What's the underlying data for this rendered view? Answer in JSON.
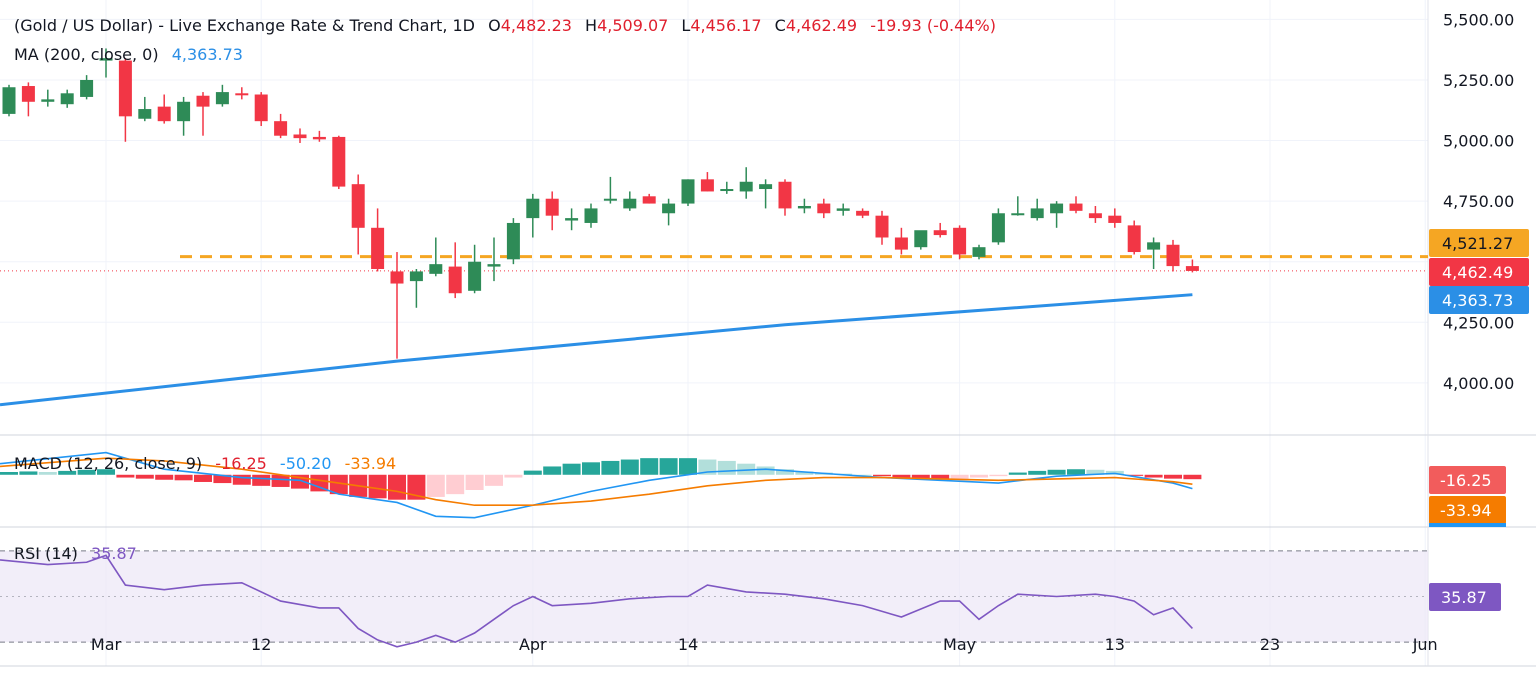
{
  "header": {
    "title": "(Gold / US Dollar) - Live Exchange Rate & Trend Chart, 1D",
    "o_label": "O",
    "o_value": "4,482.23",
    "h_label": "H",
    "h_value": "4,509.07",
    "l_label": "L",
    "l_value": "4,456.17",
    "c_label": "C",
    "c_value": "4,462.49",
    "change": "-19.93 (-0.44%)",
    "ma_label": "MA (200, close, 0)",
    "ma_value": "4,363.73"
  },
  "macd_header": {
    "label": "MACD (12, 26, close, 9)",
    "hist": "-16.25",
    "macd": "-50.20",
    "signal": "-33.94"
  },
  "rsi_header": {
    "label": "RSI (14)",
    "value": "35.87"
  },
  "price_tags": {
    "support": "4,521.27",
    "last": "4,462.49",
    "ma": "4,363.73",
    "macd_hist": "-16.25",
    "macd_signal": "-33.94",
    "rsi": "35.87"
  },
  "colors": {
    "up": "#26a69a",
    "up_body": "#2e8b57",
    "down": "#f23645",
    "ma": "#2b8fe6",
    "support": "#f5a623",
    "macd": "#2196f3",
    "signal": "#f57c00",
    "rsi": "#7e57c2"
  },
  "chart_data": [
    {
      "type": "candlestick",
      "title": "(Gold / US Dollar) - Live Exchange Rate & Trend Chart, 1D",
      "y_ticks": [
        "5,500.00",
        "5,250.00",
        "5,000.00",
        "4,750.00",
        "4,250.00",
        "4,000.00"
      ],
      "y_tick_values": [
        5500,
        5250,
        5000,
        4750,
        4250,
        4000
      ],
      "ylim": [
        3785,
        5580
      ],
      "x_ticks": [
        "Mar",
        "12",
        "Apr",
        "14",
        "May",
        "13",
        "23",
        "Jun"
      ],
      "x_tick_index": [
        5,
        13,
        27,
        35,
        49,
        57,
        65,
        73
      ],
      "support_level": 4521.27,
      "last_price": 4462.49,
      "candles": [
        {
          "o": 5110,
          "h": 5230,
          "l": 5100,
          "c": 5220
        },
        {
          "o": 5225,
          "h": 5240,
          "l": 5100,
          "c": 5160
        },
        {
          "o": 5160,
          "h": 5210,
          "l": 5140,
          "c": 5170
        },
        {
          "o": 5150,
          "h": 5210,
          "l": 5135,
          "c": 5195
        },
        {
          "o": 5180,
          "h": 5270,
          "l": 5170,
          "c": 5250
        },
        {
          "o": 5330,
          "h": 5380,
          "l": 5260,
          "c": 5340
        },
        {
          "o": 5330,
          "h": 5340,
          "l": 4995,
          "c": 5100
        },
        {
          "o": 5090,
          "h": 5180,
          "l": 5080,
          "c": 5130
        },
        {
          "o": 5140,
          "h": 5190,
          "l": 5070,
          "c": 5080
        },
        {
          "o": 5080,
          "h": 5180,
          "l": 5020,
          "c": 5160
        },
        {
          "o": 5185,
          "h": 5200,
          "l": 5020,
          "c": 5140
        },
        {
          "o": 5150,
          "h": 5230,
          "l": 5140,
          "c": 5200
        },
        {
          "o": 5195,
          "h": 5220,
          "l": 5170,
          "c": 5190
        },
        {
          "o": 5190,
          "h": 5200,
          "l": 5060,
          "c": 5080
        },
        {
          "o": 5080,
          "h": 5110,
          "l": 5010,
          "c": 5020
        },
        {
          "o": 5025,
          "h": 5050,
          "l": 4990,
          "c": 5010
        },
        {
          "o": 5015,
          "h": 5040,
          "l": 4995,
          "c": 5005
        },
        {
          "o": 5015,
          "h": 5020,
          "l": 4800,
          "c": 4810
        },
        {
          "o": 4820,
          "h": 4860,
          "l": 4530,
          "c": 4640
        },
        {
          "o": 4640,
          "h": 4720,
          "l": 4460,
          "c": 4470
        },
        {
          "o": 4460,
          "h": 4540,
          "l": 4100,
          "c": 4410
        },
        {
          "o": 4420,
          "h": 4470,
          "l": 4310,
          "c": 4460
        },
        {
          "o": 4450,
          "h": 4600,
          "l": 4440,
          "c": 4490
        },
        {
          "o": 4480,
          "h": 4580,
          "l": 4350,
          "c": 4370
        },
        {
          "o": 4380,
          "h": 4570,
          "l": 4370,
          "c": 4500
        },
        {
          "o": 4480,
          "h": 4600,
          "l": 4420,
          "c": 4490
        },
        {
          "o": 4510,
          "h": 4680,
          "l": 4490,
          "c": 4660
        },
        {
          "o": 4680,
          "h": 4780,
          "l": 4600,
          "c": 4760
        },
        {
          "o": 4760,
          "h": 4790,
          "l": 4630,
          "c": 4690
        },
        {
          "o": 4670,
          "h": 4720,
          "l": 4630,
          "c": 4680
        },
        {
          "o": 4660,
          "h": 4740,
          "l": 4640,
          "c": 4720
        },
        {
          "o": 4760,
          "h": 4850,
          "l": 4740,
          "c": 4760
        },
        {
          "o": 4720,
          "h": 4790,
          "l": 4710,
          "c": 4760
        },
        {
          "o": 4770,
          "h": 4780,
          "l": 4740,
          "c": 4740
        },
        {
          "o": 4700,
          "h": 4760,
          "l": 4650,
          "c": 4740
        },
        {
          "o": 4740,
          "h": 4840,
          "l": 4730,
          "c": 4840
        },
        {
          "o": 4840,
          "h": 4870,
          "l": 4790,
          "c": 4790
        },
        {
          "o": 4800,
          "h": 4830,
          "l": 4780,
          "c": 4800
        },
        {
          "o": 4790,
          "h": 4890,
          "l": 4760,
          "c": 4830
        },
        {
          "o": 4800,
          "h": 4840,
          "l": 4720,
          "c": 4820
        },
        {
          "o": 4830,
          "h": 4840,
          "l": 4690,
          "c": 4720
        },
        {
          "o": 4720,
          "h": 4760,
          "l": 4700,
          "c": 4730
        },
        {
          "o": 4740,
          "h": 4760,
          "l": 4680,
          "c": 4700
        },
        {
          "o": 4710,
          "h": 4740,
          "l": 4690,
          "c": 4720
        },
        {
          "o": 4710,
          "h": 4720,
          "l": 4680,
          "c": 4690
        },
        {
          "o": 4690,
          "h": 4710,
          "l": 4570,
          "c": 4600
        },
        {
          "o": 4600,
          "h": 4640,
          "l": 4530,
          "c": 4550
        },
        {
          "o": 4560,
          "h": 4620,
          "l": 4550,
          "c": 4630
        },
        {
          "o": 4630,
          "h": 4660,
          "l": 4600,
          "c": 4610
        },
        {
          "o": 4640,
          "h": 4650,
          "l": 4510,
          "c": 4530
        },
        {
          "o": 4520,
          "h": 4570,
          "l": 4510,
          "c": 4560
        },
        {
          "o": 4580,
          "h": 4720,
          "l": 4570,
          "c": 4700
        },
        {
          "o": 4700,
          "h": 4770,
          "l": 4690,
          "c": 4700
        },
        {
          "o": 4680,
          "h": 4760,
          "l": 4670,
          "c": 4720
        },
        {
          "o": 4700,
          "h": 4750,
          "l": 4640,
          "c": 4740
        },
        {
          "o": 4740,
          "h": 4770,
          "l": 4700,
          "c": 4710
        },
        {
          "o": 4700,
          "h": 4730,
          "l": 4660,
          "c": 4680
        },
        {
          "o": 4690,
          "h": 4720,
          "l": 4640,
          "c": 4660
        },
        {
          "o": 4650,
          "h": 4670,
          "l": 4530,
          "c": 4540
        },
        {
          "o": 4550,
          "h": 4600,
          "l": 4470,
          "c": 4580
        },
        {
          "o": 4570,
          "h": 4590,
          "l": 4460,
          "c": 4482
        },
        {
          "o": 4482,
          "h": 4509,
          "l": 4456,
          "c": 4462
        }
      ],
      "ma": {
        "name": "MA (200, close, 0)",
        "x": [
          0,
          20,
          40,
          61
        ],
        "values": [
          3910,
          4090,
          4240,
          4364
        ]
      }
    },
    {
      "type": "line",
      "title": "MACD (12, 26, close, 9)",
      "ylim": [
        -185,
        140
      ],
      "series": [
        {
          "name": "MACD",
          "x": [
            0,
            5,
            8,
            12,
            15,
            17,
            20,
            22,
            24,
            27,
            30,
            33,
            36,
            39,
            42,
            45,
            48,
            51,
            54,
            57,
            60,
            61
          ],
          "values": [
            40,
            80,
            20,
            -10,
            -20,
            -70,
            -100,
            -150,
            -155,
            -110,
            -60,
            -20,
            10,
            20,
            5,
            -10,
            -20,
            -30,
            -5,
            5,
            -30,
            -50
          ]
        },
        {
          "name": "Signal",
          "x": [
            0,
            5,
            8,
            12,
            15,
            17,
            20,
            22,
            24,
            27,
            30,
            33,
            36,
            39,
            42,
            45,
            48,
            51,
            54,
            57,
            60,
            61
          ],
          "values": [
            30,
            60,
            50,
            20,
            -10,
            -30,
            -60,
            -90,
            -110,
            -110,
            -95,
            -70,
            -40,
            -20,
            -10,
            -10,
            -15,
            -20,
            -15,
            -10,
            -25,
            -34
          ]
        }
      ],
      "histogram": [
        10,
        12,
        10,
        14,
        18,
        20,
        -10,
        -14,
        -18,
        -20,
        -26,
        -30,
        -36,
        -40,
        -44,
        -50,
        -60,
        -70,
        -80,
        -85,
        -90,
        -90,
        -80,
        -70,
        -55,
        -40,
        -10,
        15,
        30,
        40,
        45,
        50,
        55,
        60,
        60,
        60,
        55,
        50,
        40,
        30,
        20,
        12,
        8,
        4,
        0,
        -5,
        -10,
        -15,
        -18,
        -15,
        -10,
        -5,
        8,
        14,
        18,
        20,
        18,
        14,
        -4,
        -10,
        -14,
        -16
      ]
    },
    {
      "type": "line",
      "title": "RSI (14)",
      "ylim": [
        20,
        80
      ],
      "levels": [
        70,
        50,
        30
      ],
      "series": [
        {
          "name": "RSI",
          "x": [
            0,
            2,
            4,
            5,
            6,
            8,
            10,
            12,
            14,
            16,
            17,
            18,
            19,
            20,
            21,
            22,
            23,
            24,
            25,
            26,
            27,
            28,
            30,
            32,
            34,
            35,
            36,
            38,
            40,
            42,
            44,
            46,
            48,
            49,
            50,
            51,
            52,
            54,
            56,
            57,
            58,
            59,
            60,
            61
          ],
          "values": [
            66,
            64,
            65,
            68,
            55,
            53,
            55,
            56,
            48,
            45,
            45,
            36,
            31,
            28,
            30,
            33,
            30,
            34,
            40,
            46,
            50,
            46,
            47,
            49,
            50,
            50,
            55,
            52,
            51,
            49,
            46,
            41,
            48,
            48,
            40,
            46,
            51,
            50,
            51,
            50,
            48,
            42,
            45,
            36
          ]
        }
      ]
    }
  ]
}
